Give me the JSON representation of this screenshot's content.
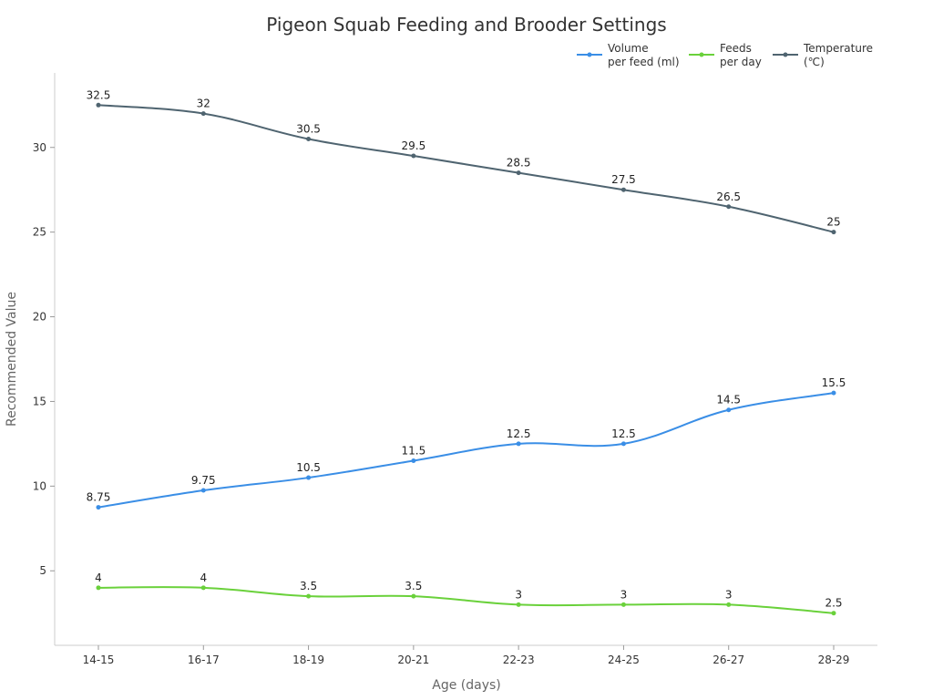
{
  "chart_data": {
    "type": "line",
    "title": "Pigeon Squab Feeding and Brooder Settings",
    "xlabel": "Age (days)",
    "ylabel": "Recommended Value",
    "categories": [
      "14-15",
      "16-17",
      "18-19",
      "20-21",
      "22-23",
      "24-25",
      "26-27",
      "28-29"
    ],
    "ylim": [
      0.6,
      34.4
    ],
    "yticks": [
      5,
      10,
      15,
      20,
      25,
      30
    ],
    "grid": false,
    "legend_position": "top-right",
    "series": [
      {
        "name": "Volume per feed (ml)",
        "legend_lines": [
          "Volume",
          "per feed (ml)"
        ],
        "color": "#3a8ee6",
        "values": [
          8.75,
          9.75,
          10.5,
          11.5,
          12.5,
          12.5,
          14.5,
          15.5
        ]
      },
      {
        "name": "Feeds per day",
        "legend_lines": [
          "Feeds",
          "per day"
        ],
        "color": "#6ad13b",
        "values": [
          4,
          4,
          3.5,
          3.5,
          3,
          3,
          3,
          2.5
        ]
      },
      {
        "name": "Temperature (℃)",
        "legend_lines": [
          "Temperature",
          "(℃)"
        ],
        "color": "#4f6470",
        "values": [
          32.5,
          32,
          30.5,
          29.5,
          28.5,
          27.5,
          26.5,
          25
        ]
      }
    ]
  }
}
